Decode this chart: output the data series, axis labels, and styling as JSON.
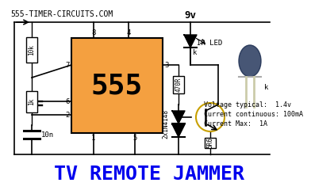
{
  "title": "TV REMOTE JAMMER",
  "website": "555-TIMER-CIRCUITS.COM",
  "voltage_label": "9v",
  "chip_label": "555",
  "chip_color": "#F4A040",
  "chip_outline": "#000000",
  "bg_color": "#FFFFFF",
  "title_color": "#0000EE",
  "title_fontsize": 18,
  "website_fontsize": 7,
  "cap_10n_label": "10n",
  "annotations": [
    "Voltage typical:  1.4v",
    "Current continuous: 100mA",
    "Current Max:  1A"
  ],
  "ir_led_label": "IR LED",
  "diodes_label": "2x1N4148"
}
